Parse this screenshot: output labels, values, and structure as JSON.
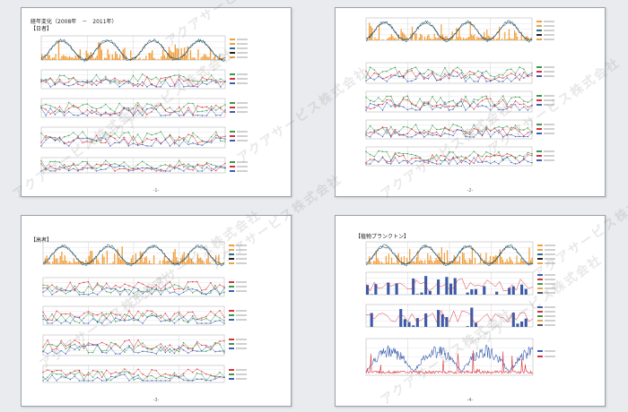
{
  "pages": [
    {
      "title": "経年変化（2008年　－　2011年）",
      "section_label": "【日者】",
      "page_number": "-1-"
    },
    {
      "title": "",
      "section_label": "",
      "page_number": "-2-"
    },
    {
      "title": "",
      "section_label": "【高者】",
      "page_number": "-3-"
    },
    {
      "title": "【植物プランクトン】",
      "section_label": "",
      "page_number": "-4-"
    }
  ],
  "watermark_text": "アクアサービス株式会社",
  "colors": {
    "temp_line": "#2a6f8f",
    "temp_line2": "#222222",
    "precip_bar": "#f0a040",
    "red": "#d8303a",
    "green": "#3a9a4a",
    "blue": "#3a5fb0",
    "navy_bar": "#3a5aa8",
    "grid": "#d0d4d8"
  },
  "icons": [
    "chart-icon"
  ]
}
